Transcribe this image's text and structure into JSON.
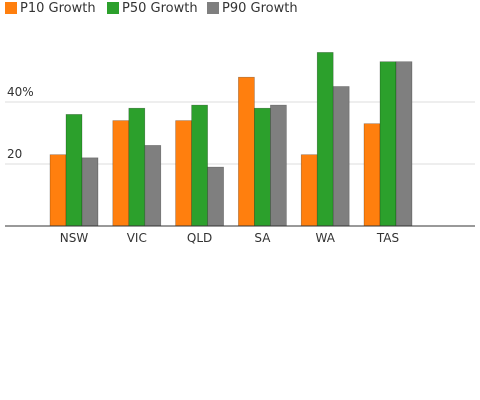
{
  "chart_data": {
    "type": "bar",
    "title": "",
    "xlabel": "",
    "ylabel": "",
    "ylim": [
      0,
      60
    ],
    "y_ticks": [
      {
        "value": 20,
        "label": "20"
      },
      {
        "value": 40,
        "label": "40%"
      }
    ],
    "grid": true,
    "legend_position": "top-left",
    "categories": [
      "NSW",
      "VIC",
      "QLD",
      "SA",
      "WA",
      "TAS"
    ],
    "series": [
      {
        "name": "P10 Growth",
        "color": "#ff7f0e",
        "values": [
          23,
          34,
          34,
          48,
          23,
          33
        ]
      },
      {
        "name": "P50 Growth",
        "color": "#2ca02c",
        "values": [
          36,
          38,
          39,
          38,
          56,
          53
        ]
      },
      {
        "name": "P90 Growth",
        "color": "#7f7f7f",
        "values": [
          22,
          26,
          19,
          39,
          45,
          53
        ]
      }
    ]
  }
}
